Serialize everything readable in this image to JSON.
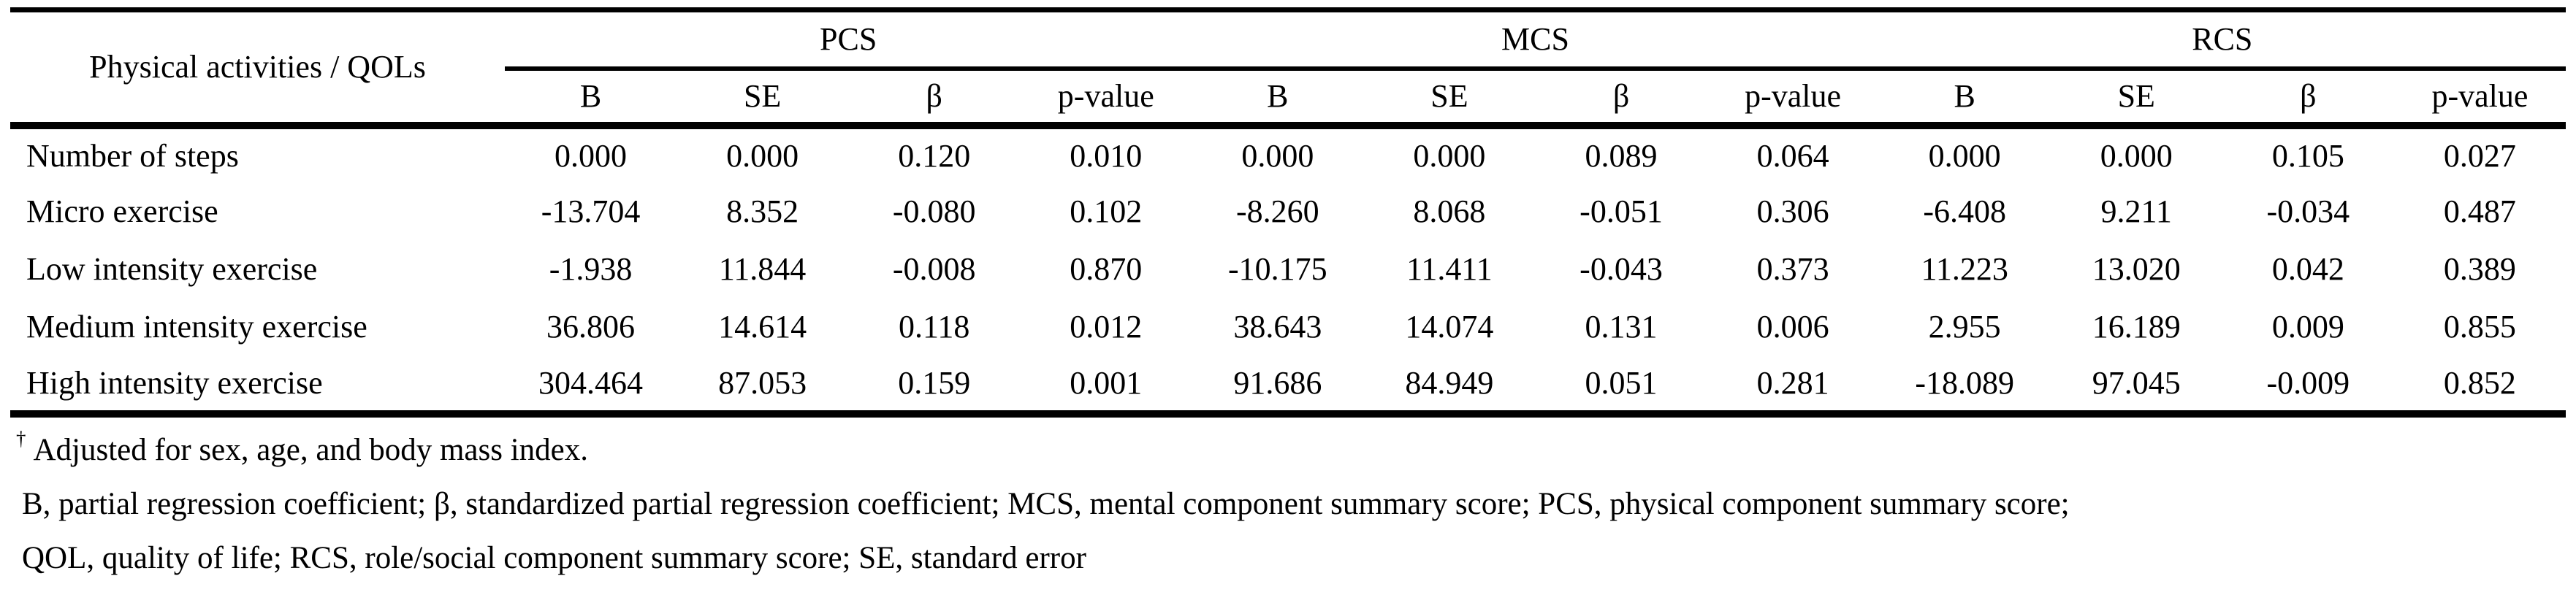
{
  "table": {
    "corner_header": "Physical activities / QOLs",
    "groups": [
      {
        "label": "PCS"
      },
      {
        "label": "MCS"
      },
      {
        "label": "RCS"
      }
    ],
    "sub_headers": [
      "B",
      "SE",
      "β",
      "p-value",
      "B",
      "SE",
      "β",
      "p-value",
      "B",
      "SE",
      "β",
      "p-value"
    ],
    "rows": [
      {
        "label": "Number of steps",
        "values": [
          "0.000",
          "0.000",
          "0.120",
          "0.010",
          "0.000",
          "0.000",
          "0.089",
          "0.064",
          "0.000",
          "0.000",
          "0.105",
          "0.027"
        ]
      },
      {
        "label": "Micro exercise",
        "values": [
          "-13.704",
          "8.352",
          "-0.080",
          "0.102",
          "-8.260",
          "8.068",
          "-0.051",
          "0.306",
          "-6.408",
          "9.211",
          "-0.034",
          "0.487"
        ]
      },
      {
        "label": "Low intensity exercise",
        "values": [
          "-1.938",
          "11.844",
          "-0.008",
          "0.870",
          "-10.175",
          "11.411",
          "-0.043",
          "0.373",
          "11.223",
          "13.020",
          "0.042",
          "0.389"
        ]
      },
      {
        "label": "Medium intensity exercise",
        "values": [
          "36.806",
          "14.614",
          "0.118",
          "0.012",
          "38.643",
          "14.074",
          "0.131",
          "0.006",
          "2.955",
          "16.189",
          "0.009",
          "0.855"
        ]
      },
      {
        "label": "High intensity exercise",
        "values": [
          "304.464",
          "87.053",
          "0.159",
          "0.001",
          "91.686",
          "84.949",
          "0.051",
          "0.281",
          "-18.089",
          "97.045",
          "-0.009",
          "0.852"
        ]
      }
    ]
  },
  "footnotes": {
    "dagger_symbol": "†",
    "adjustment_note": "Adjusted for sex, age, and body mass index.",
    "abbreviation_note_line1": "B, partial regression coefficient; β, standardized partial regression coefficient; MCS, mental component summary score; PCS, physical component summary score;",
    "abbreviation_note_line2": "QOL, quality of life; RCS, role/social component summary score; SE, standard error"
  },
  "colors": {
    "text": "#000000",
    "background": "#ffffff",
    "rule": "#000000"
  }
}
